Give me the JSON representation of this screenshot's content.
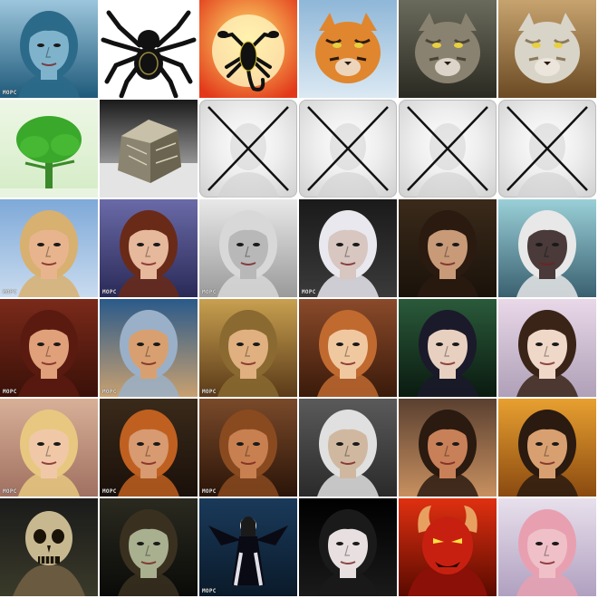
{
  "gallery": {
    "watermark": "MOPC",
    "tiles": [
      {
        "name": "portrait-tile-ghost-face",
        "kind": "face",
        "bg": [
          "#9cc6dc",
          "#1f5a7a"
        ],
        "skin": "#7fb3cc",
        "hair": "#2c6a8a",
        "watermark": true
      },
      {
        "name": "portrait-tile-tarantula",
        "kind": "spider",
        "bg": [
          "#ffffff",
          "#ffffff"
        ],
        "watermark": false
      },
      {
        "name": "portrait-tile-scorpion",
        "kind": "scorpion",
        "bg": [
          "#ffe36a",
          "#e2391b"
        ],
        "watermark": false
      },
      {
        "name": "portrait-tile-tiger",
        "kind": "animal",
        "bg": [
          "#8fb7d8",
          "#dbe9f3"
        ],
        "skin": "#e0862f",
        "hair": "#2a1a0c",
        "watermark": false
      },
      {
        "name": "portrait-tile-wolf",
        "kind": "animal",
        "bg": [
          "#6a6a5c",
          "#2b2a22"
        ],
        "skin": "#8a8270",
        "hair": "#4a4436",
        "watermark": false
      },
      {
        "name": "portrait-tile-unicorn",
        "kind": "animal",
        "bg": [
          "#c6a36e",
          "#6b4a24"
        ],
        "skin": "#d9d4c8",
        "hair": "#8c7a5e",
        "watermark": false
      },
      {
        "name": "portrait-tile-green-tree",
        "kind": "tree",
        "bg": [
          "#eef7e6",
          "#d4ecc6"
        ],
        "watermark": false
      },
      {
        "name": "portrait-tile-pyrite-crystal",
        "kind": "crystal",
        "bg": [
          "#1a1a1a",
          "#d8d8d8"
        ],
        "watermark": false
      },
      {
        "name": "portrait-tile-empty-slot-1",
        "kind": "empty",
        "watermark": false
      },
      {
        "name": "portrait-tile-empty-slot-2",
        "kind": "empty",
        "watermark": false
      },
      {
        "name": "portrait-tile-empty-slot-3",
        "kind": "empty",
        "watermark": false
      },
      {
        "name": "portrait-tile-empty-slot-4",
        "kind": "empty",
        "watermark": false
      },
      {
        "name": "portrait-tile-blonde-elf-woman",
        "kind": "face",
        "bg": [
          "#7ea9d8",
          "#c9dbef"
        ],
        "skin": "#e8b48e",
        "hair": "#d8b070",
        "watermark": true
      },
      {
        "name": "portrait-tile-auburn-elf-woman",
        "kind": "face",
        "bg": [
          "#6a6aa8",
          "#2a2a58"
        ],
        "skin": "#e6b89c",
        "hair": "#6a2a18",
        "watermark": true
      },
      {
        "name": "portrait-tile-silver-elf-warrior",
        "kind": "face",
        "bg": [
          "#e8e8e8",
          "#9a9a9a"
        ],
        "skin": "#b8b8b8",
        "hair": "#d8d8d8",
        "watermark": true
      },
      {
        "name": "portrait-tile-white-hair-elf",
        "kind": "face",
        "bg": [
          "#1a1a1a",
          "#3a3a3a"
        ],
        "skin": "#d8c6c0",
        "hair": "#e8e8ee",
        "watermark": true
      },
      {
        "name": "portrait-tile-hooded-elf-man",
        "kind": "face",
        "bg": [
          "#3a2a1a",
          "#1a120a"
        ],
        "skin": "#c89a78",
        "hair": "#2a1a10",
        "watermark": false
      },
      {
        "name": "portrait-tile-drow-elf",
        "kind": "face",
        "bg": [
          "#9ad0d8",
          "#3a6070"
        ],
        "skin": "#4a3a3a",
        "hair": "#e8e8e8",
        "watermark": false
      },
      {
        "name": "portrait-tile-smiling-woman",
        "kind": "face",
        "bg": [
          "#7a2a1a",
          "#3a1008"
        ],
        "skin": "#e0a07a",
        "hair": "#5a1a10",
        "watermark": true
      },
      {
        "name": "portrait-tile-helmeted-warrior",
        "kind": "face",
        "bg": [
          "#2a5a8a",
          "#c8a070"
        ],
        "skin": "#d8a070",
        "hair": "#9ab0c8",
        "watermark": true
      },
      {
        "name": "portrait-tile-masked-huntress",
        "kind": "face",
        "bg": [
          "#c8a050",
          "#5a3a18"
        ],
        "skin": "#e0b080",
        "hair": "#8a6a30",
        "watermark": true
      },
      {
        "name": "portrait-tile-redhead-woman",
        "kind": "face",
        "bg": [
          "#8a4a2a",
          "#3a1a0a"
        ],
        "skin": "#f0c8a0",
        "hair": "#c06a30",
        "watermark": false
      },
      {
        "name": "portrait-tile-green-eyed-sorceress",
        "kind": "face",
        "bg": [
          "#2a5a3a",
          "#0a1a10"
        ],
        "skin": "#e8d0c0",
        "hair": "#1a1a2a",
        "watermark": false
      },
      {
        "name": "portrait-tile-dark-hair-maiden",
        "kind": "face",
        "bg": [
          "#e8d8e8",
          "#b0a0b8"
        ],
        "skin": "#f0d8c8",
        "hair": "#3a2418",
        "watermark": false
      },
      {
        "name": "portrait-tile-blonde-lady",
        "kind": "face",
        "bg": [
          "#d8b098",
          "#a07060"
        ],
        "skin": "#f0c8a8",
        "hair": "#e8c880",
        "watermark": true
      },
      {
        "name": "portrait-tile-red-beard-dwarf",
        "kind": "face",
        "bg": [
          "#3a2a1a",
          "#1a100a"
        ],
        "skin": "#d89a70",
        "hair": "#c06020",
        "watermark": true
      },
      {
        "name": "portrait-tile-horned-dwarf",
        "kind": "face",
        "bg": [
          "#7a4a2a",
          "#2a1408"
        ],
        "skin": "#c88050",
        "hair": "#8a4a20",
        "watermark": true
      },
      {
        "name": "portrait-tile-grey-wizard",
        "kind": "face",
        "bg": [
          "#5a5a5a",
          "#2a2a2a"
        ],
        "skin": "#d0b8a0",
        "hair": "#e0e0e0",
        "watermark": false
      },
      {
        "name": "portrait-tile-barbarian",
        "kind": "face",
        "bg": [
          "#5a4030",
          "#c89060"
        ],
        "skin": "#c88058",
        "hair": "#2a1a10",
        "watermark": false
      },
      {
        "name": "portrait-tile-swordsman",
        "kind": "face",
        "bg": [
          "#e8a030",
          "#8a4a10"
        ],
        "skin": "#d8a070",
        "hair": "#2a1a10",
        "watermark": false
      },
      {
        "name": "portrait-tile-skeleton",
        "kind": "skull",
        "bg": [
          "#1a1a1a",
          "#3a3a2a"
        ],
        "skin": "#c8b890",
        "watermark": false
      },
      {
        "name": "portrait-tile-possessed-girl",
        "kind": "face",
        "bg": [
          "#2a2a20",
          "#0a0a08"
        ],
        "skin": "#a8b090",
        "hair": "#3a3020",
        "watermark": false
      },
      {
        "name": "portrait-tile-vampiress",
        "kind": "figure",
        "bg": [
          "#1a3a5a",
          "#0a1a2a"
        ],
        "skin": "#e0e0e8",
        "hair": "#1a1a1a",
        "watermark": true
      },
      {
        "name": "portrait-tile-vampire",
        "kind": "face",
        "bg": [
          "#000000",
          "#1a1a1a"
        ],
        "skin": "#e8e0e0",
        "hair": "#1a1a1a",
        "watermark": false
      },
      {
        "name": "portrait-tile-red-demon",
        "kind": "demon",
        "bg": [
          "#e03010",
          "#5a0a00"
        ],
        "skin": "#c82010",
        "watermark": false
      },
      {
        "name": "portrait-tile-devil-baby",
        "kind": "face",
        "bg": [
          "#e8e0ec",
          "#b0a0c0"
        ],
        "skin": "#f0c0c8",
        "hair": "#e8a0b0",
        "watermark": false
      }
    ]
  }
}
